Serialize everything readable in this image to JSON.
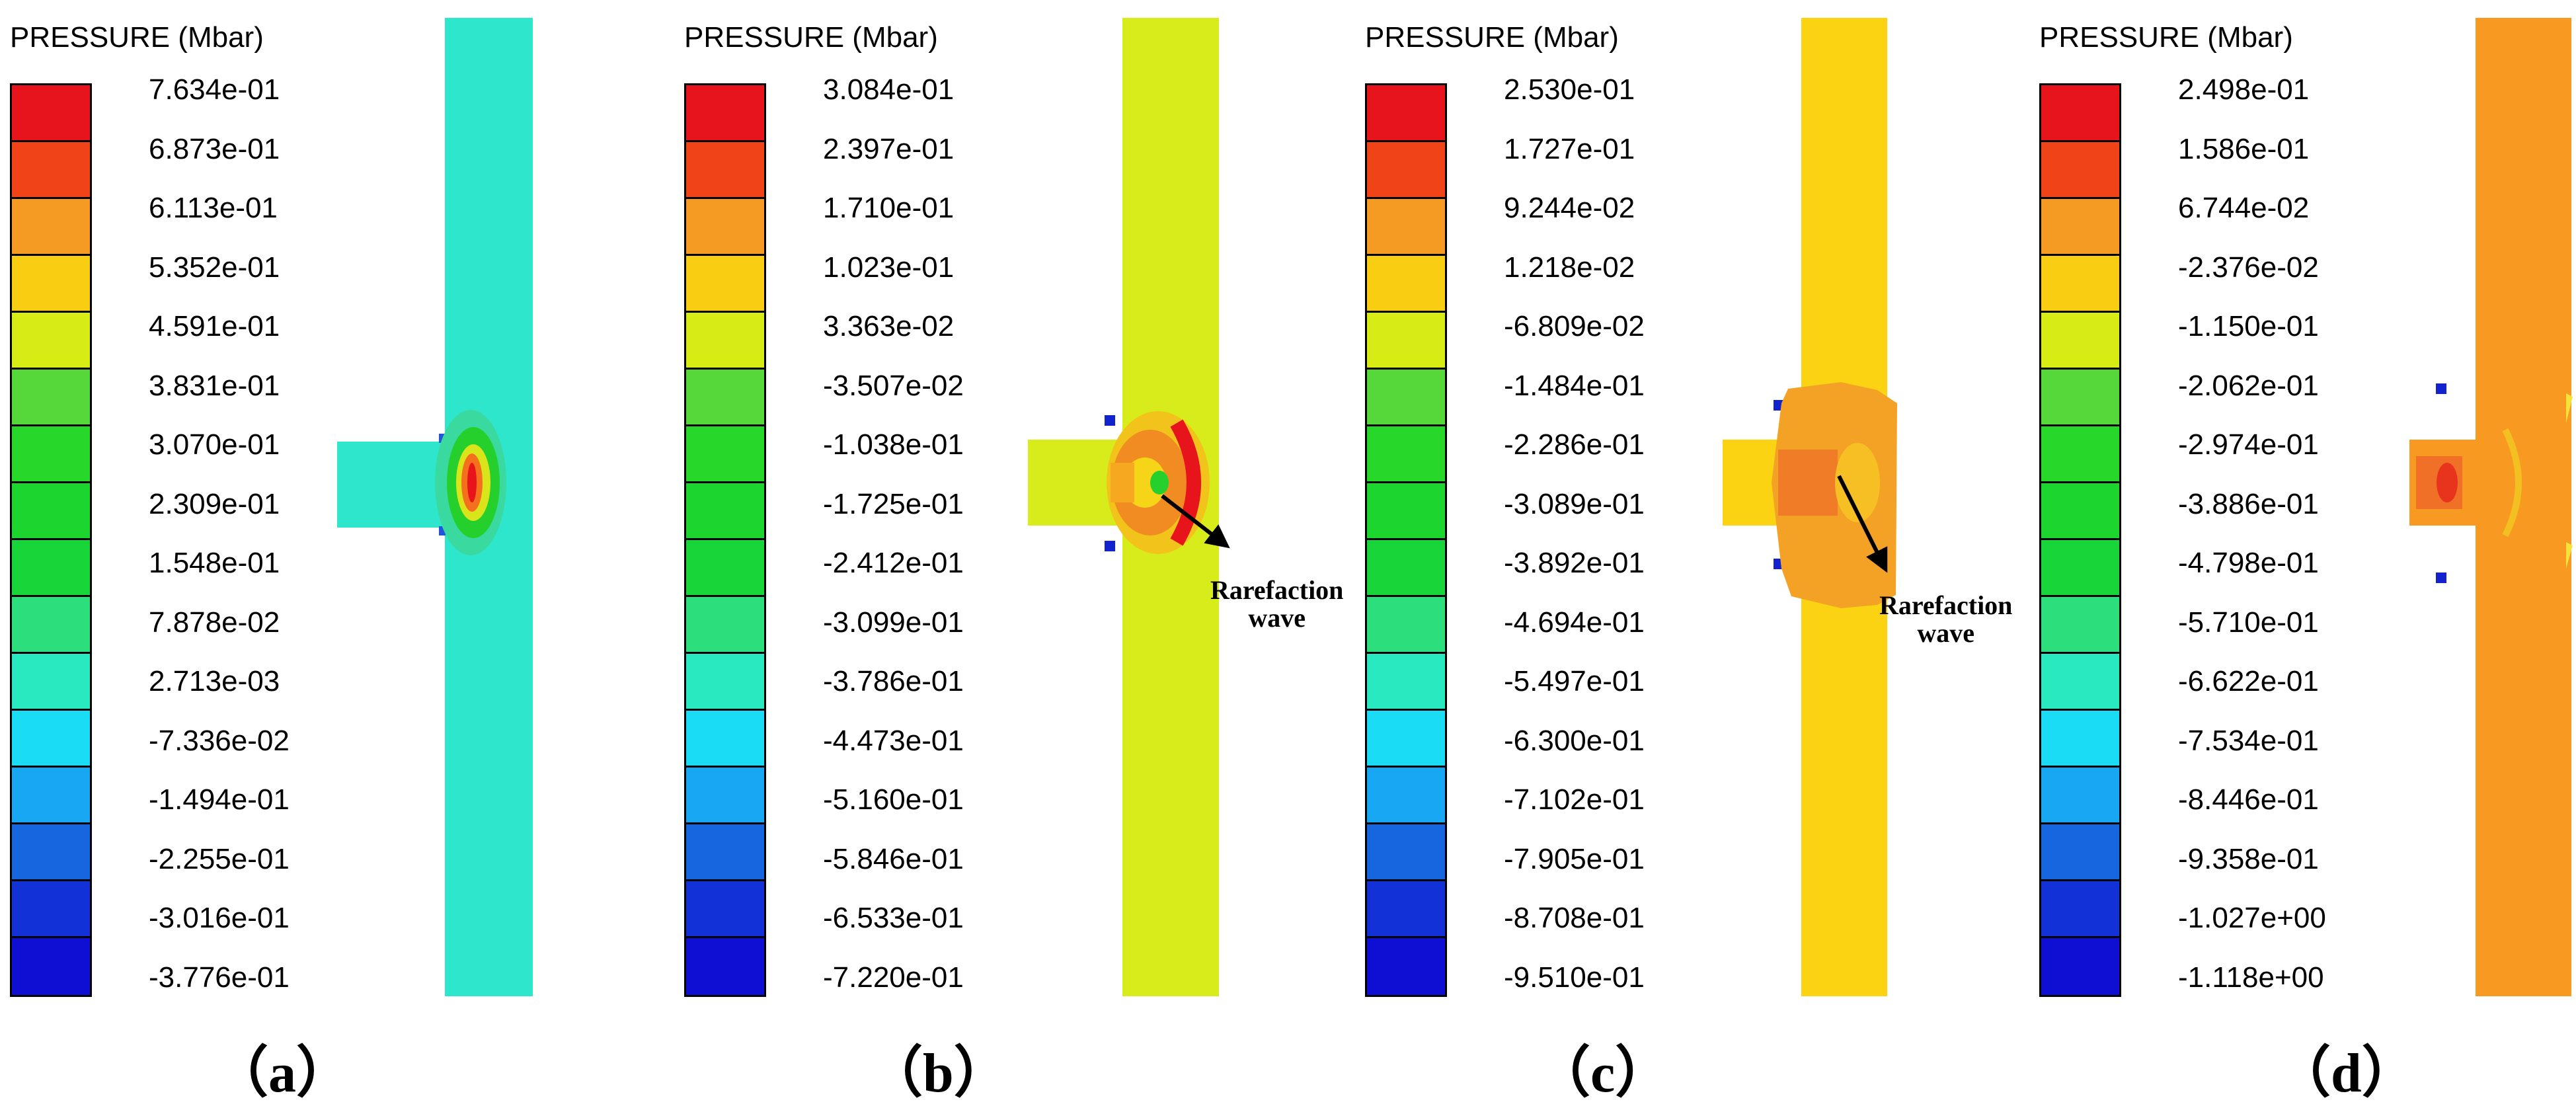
{
  "colors": [
    "#e8141c",
    "#f04418",
    "#f59a22",
    "#f8cd12",
    "#d6ec14",
    "#57d83a",
    "#27d72a",
    "#1cd52e",
    "#18d539",
    "#2ddf7c",
    "#28e9c0",
    "#1bdcf5",
    "#18a7f2",
    "#1666e0",
    "#1232d8",
    "#0f0fd4"
  ],
  "panels": [
    {
      "title": "PRESSURE (Mbar)",
      "caption": "（a）",
      "bar_colors": [
        "#e8141c",
        "#f04418",
        "#f59a22",
        "#f8cd12",
        "#d6ec14",
        "#57d83a",
        "#27d72a",
        "#1cd52e",
        "#18d539",
        "#2ddf7c",
        "#28e9c0",
        "#1bdcf5",
        "#18a7f2",
        "#1666e0",
        "#1232d8",
        "#0f0fd4"
      ],
      "values": [
        "7.634e-01",
        "6.873e-01",
        "6.113e-01",
        "5.352e-01",
        "4.591e-01",
        "3.831e-01",
        "3.070e-01",
        "2.309e-01",
        "1.548e-01",
        "7.878e-02",
        "2.713e-03",
        "-7.336e-02",
        "-1.494e-01",
        "-2.255e-01",
        "-3.016e-01",
        "-3.776e-01"
      ],
      "column_color": "#2de6cc",
      "annotation": ""
    },
    {
      "title": "PRESSURE (Mbar)",
      "caption": "（b）",
      "bar_colors": [
        "#e8141c",
        "#f04418",
        "#f59a22",
        "#f8cd12",
        "#d6ec14",
        "#57d83a",
        "#27d72a",
        "#1cd52e",
        "#18d539",
        "#2ddf7c",
        "#28e9c0",
        "#1bdcf5",
        "#18a7f2",
        "#1666e0",
        "#1232d8",
        "#0f0fd4"
      ],
      "values": [
        "3.084e-01",
        "2.397e-01",
        "1.710e-01",
        "1.023e-01",
        "3.363e-02",
        "-3.507e-02",
        "-1.038e-01",
        "-1.725e-01",
        "-2.412e-01",
        "-3.099e-01",
        "-3.786e-01",
        "-4.473e-01",
        "-5.160e-01",
        "-5.846e-01",
        "-6.533e-01",
        "-7.220e-01"
      ],
      "column_color": "#d8ec1c",
      "annotation": "Rarefaction\nwave"
    },
    {
      "title": "PRESSURE (Mbar)",
      "caption": "（c）",
      "bar_colors": [
        "#e8141c",
        "#f04418",
        "#f59a22",
        "#f8cd12",
        "#d6ec14",
        "#57d83a",
        "#27d72a",
        "#1cd52e",
        "#18d539",
        "#2ddf7c",
        "#28e9c0",
        "#1bdcf5",
        "#18a7f2",
        "#1666e0",
        "#1232d8",
        "#0f0fd4"
      ],
      "values": [
        "2.530e-01",
        "1.727e-01",
        "9.244e-02",
        "1.218e-02",
        "-6.809e-02",
        "-1.484e-01",
        "-2.286e-01",
        "-3.089e-01",
        "-3.892e-01",
        "-4.694e-01",
        "-5.497e-01",
        "-6.300e-01",
        "-7.102e-01",
        "-7.905e-01",
        "-8.708e-01",
        "-9.510e-01"
      ],
      "column_color": "#fbd312",
      "annotation": "Rarefaction\nwave"
    },
    {
      "title": "PRESSURE (Mbar)",
      "caption": "（d）",
      "bar_colors": [
        "#e8141c",
        "#f04418",
        "#f59a22",
        "#f8cd12",
        "#d6ec14",
        "#57d83a",
        "#27d72a",
        "#1cd52e",
        "#18d539",
        "#2ddf7c",
        "#28e9c0",
        "#1bdcf5",
        "#18a7f2",
        "#1666e0",
        "#1232d8",
        "#0f0fd4"
      ],
      "values": [
        "2.498e-01",
        "1.586e-01",
        "6.744e-02",
        "-2.376e-02",
        "-1.150e-01",
        "-2.062e-01",
        "-2.974e-01",
        "-3.886e-01",
        "-4.798e-01",
        "-5.710e-01",
        "-6.622e-01",
        "-7.534e-01",
        "-8.446e-01",
        "-9.358e-01",
        "-1.027e+00",
        "-1.118e+00"
      ],
      "column_color": "#f89a22",
      "annotation": ""
    }
  ]
}
